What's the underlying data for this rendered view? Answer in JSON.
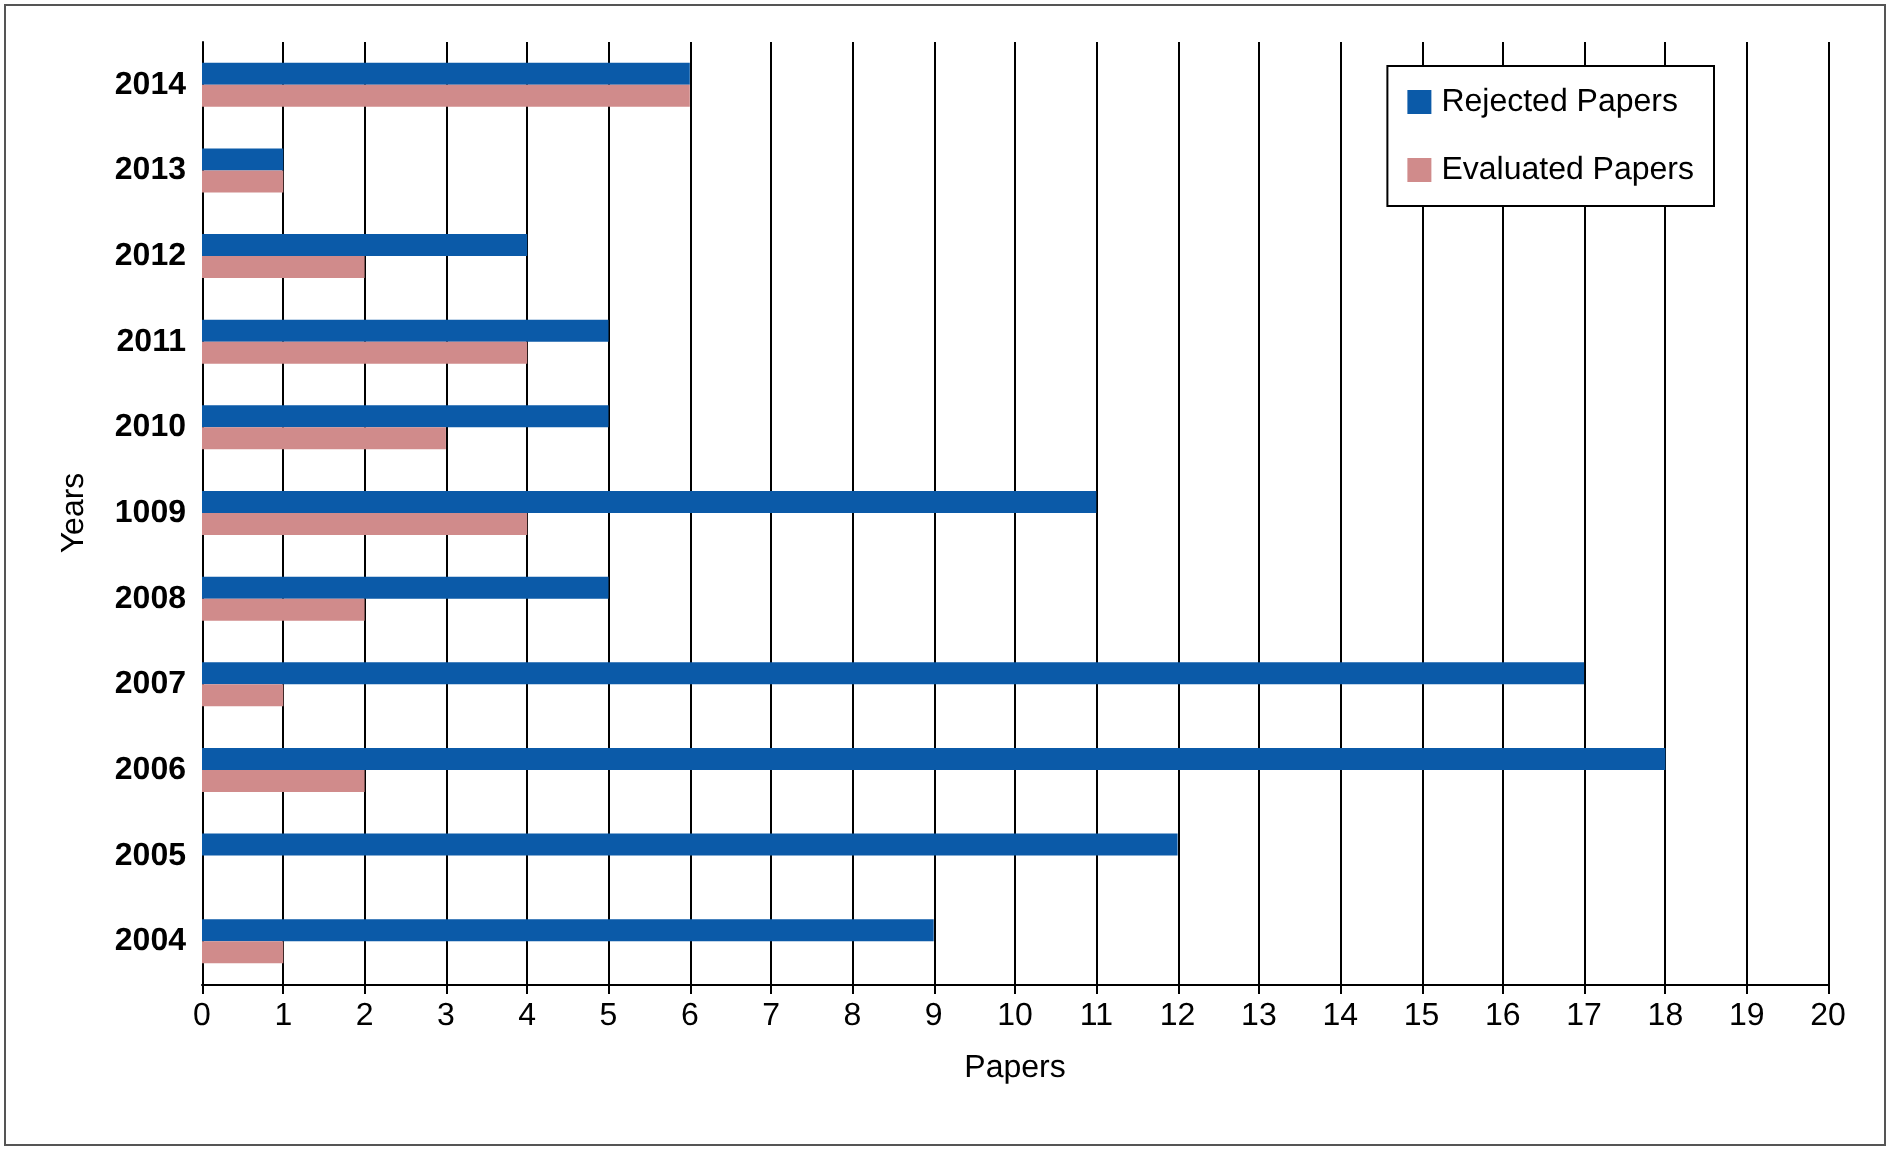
{
  "chart_data": {
    "type": "bar",
    "orientation": "horizontal",
    "xlabel": "Papers",
    "ylabel": "Years",
    "categories": [
      "2014",
      "2013",
      "2012",
      "2011",
      "2010",
      "1009",
      "2008",
      "2007",
      "2006",
      "2005",
      "2004"
    ],
    "series": [
      {
        "name": "Rejected Papers",
        "color": "#0b5aa8",
        "values": [
          6,
          1,
          4,
          5,
          5,
          11,
          5,
          17,
          18,
          12,
          9
        ]
      },
      {
        "name": "Evaluated Papers",
        "color": "#d08b8b",
        "values": [
          6,
          1,
          2,
          4,
          3,
          4,
          2,
          1,
          2,
          0,
          1
        ]
      }
    ],
    "xlim": [
      0,
      20
    ],
    "xticks": [
      0,
      1,
      2,
      3,
      4,
      5,
      6,
      7,
      8,
      9,
      10,
      11,
      12,
      13,
      14,
      15,
      16,
      17,
      18,
      19,
      20
    ],
    "grid": "x",
    "legend": "top right"
  }
}
